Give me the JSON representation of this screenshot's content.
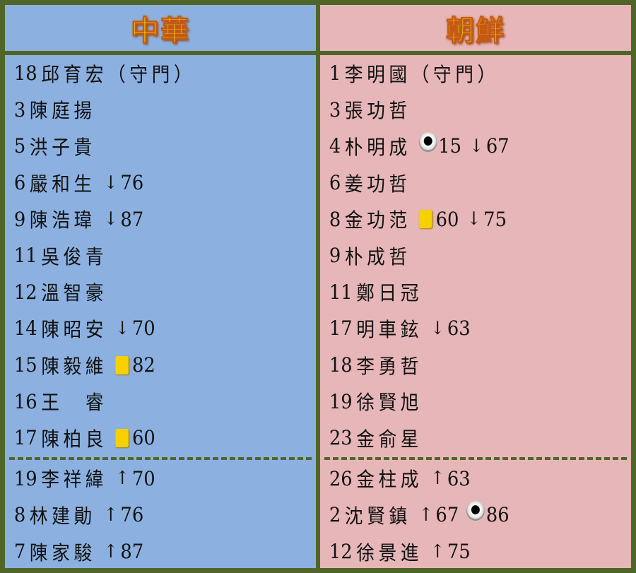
{
  "teams": [
    {
      "title": "中華",
      "color": "#8cb1e0",
      "starters": [
        {
          "num": "18",
          "name": "邱育宏（守門）",
          "events": []
        },
        {
          "num": "3",
          "name": "陳庭揚",
          "events": []
        },
        {
          "num": "5",
          "name": "洪子貴",
          "events": []
        },
        {
          "num": "6",
          "name": "嚴和生",
          "events": [
            {
              "type": "sub-off",
              "icon": "down-arrow",
              "minute": "76"
            }
          ]
        },
        {
          "num": "9",
          "name": "陳浩瑋",
          "events": [
            {
              "type": "sub-off",
              "icon": "down-arrow",
              "minute": "87"
            }
          ]
        },
        {
          "num": "11",
          "name": "吳俊青",
          "events": []
        },
        {
          "num": "12",
          "name": "溫智豪",
          "events": []
        },
        {
          "num": "14",
          "name": "陳昭安",
          "events": [
            {
              "type": "sub-off",
              "icon": "down-arrow",
              "minute": "70"
            }
          ]
        },
        {
          "num": "15",
          "name": "陳毅維",
          "events": [
            {
              "type": "yellow-card",
              "icon": "yellow-card",
              "minute": "82"
            }
          ]
        },
        {
          "num": "16",
          "name": "王　睿",
          "events": []
        },
        {
          "num": "17",
          "name": "陳柏良",
          "events": [
            {
              "type": "yellow-card",
              "icon": "yellow-card",
              "minute": "60"
            }
          ]
        }
      ],
      "subs": [
        {
          "num": "19",
          "name": "李祥緯",
          "events": [
            {
              "type": "sub-on",
              "icon": "up-arrow",
              "minute": "70"
            }
          ]
        },
        {
          "num": "8",
          "name": "林建勛",
          "events": [
            {
              "type": "sub-on",
              "icon": "up-arrow",
              "minute": "76"
            }
          ]
        },
        {
          "num": "7",
          "name": "陳家駿",
          "events": [
            {
              "type": "sub-on",
              "icon": "up-arrow",
              "minute": "87"
            }
          ]
        }
      ]
    },
    {
      "title": "朝鮮",
      "color": "#e6b6b8",
      "starters": [
        {
          "num": "1",
          "name": "李明國（守門）",
          "events": []
        },
        {
          "num": "3",
          "name": "張功哲",
          "events": []
        },
        {
          "num": "4",
          "name": "朴明成",
          "events": [
            {
              "type": "goal",
              "icon": "ball",
              "minute": "15"
            },
            {
              "type": "sub-off",
              "icon": "down-arrow",
              "minute": "67"
            }
          ]
        },
        {
          "num": "6",
          "name": "姜功哲",
          "events": []
        },
        {
          "num": "8",
          "name": "金功范",
          "events": [
            {
              "type": "yellow-card",
              "icon": "yellow-card",
              "minute": "60"
            },
            {
              "type": "sub-off",
              "icon": "down-arrow",
              "minute": "75"
            }
          ]
        },
        {
          "num": "9",
          "name": "朴成哲",
          "events": []
        },
        {
          "num": "11",
          "name": "鄭日冠",
          "events": []
        },
        {
          "num": "17",
          "name": "明車鉉",
          "events": [
            {
              "type": "sub-off",
              "icon": "down-arrow",
              "minute": "63"
            }
          ]
        },
        {
          "num": "18",
          "name": "李勇哲",
          "events": []
        },
        {
          "num": "19",
          "name": "徐賢旭",
          "events": []
        },
        {
          "num": "23",
          "name": "金俞星",
          "events": []
        }
      ],
      "subs": [
        {
          "num": "26",
          "name": "金柱成",
          "events": [
            {
              "type": "sub-on",
              "icon": "up-arrow",
              "minute": "63"
            }
          ]
        },
        {
          "num": "2",
          "name": "沈賢鎮",
          "events": [
            {
              "type": "sub-on",
              "icon": "up-arrow",
              "minute": "67"
            },
            {
              "type": "goal",
              "icon": "ball",
              "minute": "86"
            }
          ]
        },
        {
          "num": "12",
          "name": "徐景進",
          "events": [
            {
              "type": "sub-on",
              "icon": "up-arrow",
              "minute": "75"
            }
          ]
        }
      ]
    }
  ]
}
